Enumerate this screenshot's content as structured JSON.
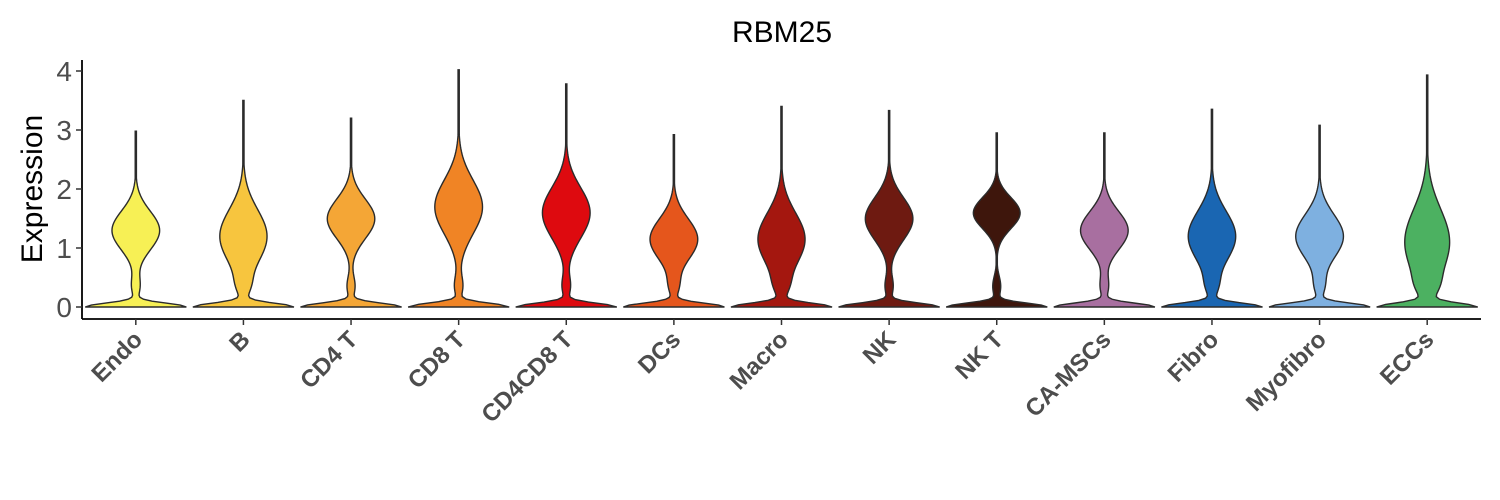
{
  "chart_data": {
    "type": "violin",
    "title": "RBM25",
    "xlabel": "",
    "ylabel": "Expression",
    "ylim": [
      0,
      4
    ],
    "yticks": [
      "0",
      "1",
      "2",
      "3",
      "4"
    ],
    "categories": [
      "Endo",
      "B",
      "CD4 T",
      "CD8 T",
      "CD4CD8 T",
      "DCs",
      "Macro",
      "NK",
      "NK T",
      "CA-MSCs",
      "Fibro",
      "Myofibro",
      "ECCs"
    ],
    "colors": [
      "#F7F055",
      "#F7C53E",
      "#F4A636",
      "#F08425",
      "#DE0A0F",
      "#E5561C",
      "#A4170F",
      "#6E1A11",
      "#3E160C",
      "#A86FA0",
      "#1A66B2",
      "#7EB0E0",
      "#4CB161"
    ],
    "max_expression": [
      2.98,
      3.5,
      3.2,
      4.02,
      3.78,
      2.92,
      3.4,
      3.33,
      2.95,
      2.95,
      3.35,
      3.08,
      3.93
    ],
    "upper_mode_center": [
      1.3,
      1.2,
      1.5,
      1.7,
      1.6,
      1.15,
      1.15,
      1.5,
      1.6,
      1.3,
      1.2,
      1.2,
      1.1
    ]
  }
}
